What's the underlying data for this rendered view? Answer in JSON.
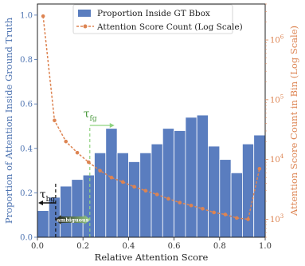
{
  "chart_data": {
    "type": "bar+line",
    "xlabel": "Relative Attention Score",
    "ylabel_left": "Proportion of Attention Inside Ground Truth",
    "ylabel_right": "Attention Score Count in Bin (Log Scale)",
    "x_ticks": [
      "0.0",
      "0.2",
      "0.4",
      "0.6",
      "0.8",
      "1.0"
    ],
    "y_left_ticks": [
      "0.0",
      "0.2",
      "0.4",
      "0.6",
      "0.8",
      "1.0"
    ],
    "y_right_ticks": [
      {
        "value": 1000,
        "base": "10",
        "exp": "3"
      },
      {
        "value": 10000,
        "base": "10",
        "exp": "4"
      },
      {
        "value": 100000,
        "base": "10",
        "exp": "5"
      },
      {
        "value": 1000000,
        "base": "10",
        "exp": "6"
      }
    ],
    "xlim": [
      0,
      1
    ],
    "ylim_left": [
      0,
      1.05
    ],
    "ylim_right_log": [
      500,
      4000000
    ],
    "bins": {
      "x_centers": [
        0.025,
        0.075,
        0.125,
        0.175,
        0.225,
        0.275,
        0.325,
        0.375,
        0.425,
        0.475,
        0.525,
        0.575,
        0.625,
        0.675,
        0.725,
        0.775,
        0.825,
        0.875,
        0.925,
        0.975
      ],
      "width": 0.05
    },
    "series": [
      {
        "name": "Proportion Inside GT Bbox",
        "kind": "bar",
        "axis": "left",
        "color": "#5a7dbf",
        "values": [
          0.12,
          0.18,
          0.23,
          0.26,
          0.28,
          0.38,
          0.49,
          0.38,
          0.34,
          0.38,
          0.42,
          0.49,
          0.48,
          0.54,
          0.55,
          0.41,
          0.35,
          0.29,
          0.42,
          0.46
        ]
      },
      {
        "name": "Attention Score Count (Log Scale)",
        "kind": "line",
        "axis": "right",
        "color": "#dd8452",
        "x": [
          0.025,
          0.075,
          0.125,
          0.175,
          0.225,
          0.275,
          0.325,
          0.375,
          0.425,
          0.475,
          0.525,
          0.575,
          0.625,
          0.675,
          0.725,
          0.775,
          0.825,
          0.875,
          0.925,
          0.975
        ],
        "values": [
          2500000,
          45000,
          20000,
          13000,
          9000,
          6500,
          5000,
          4200,
          3500,
          3000,
          2600,
          2200,
          1900,
          1700,
          1500,
          1300,
          1200,
          1050,
          1000,
          7000
        ]
      }
    ],
    "legend_position": "top-center",
    "annotations": {
      "tau_fg": {
        "base": "τ",
        "sub": "fg",
        "x": 0.23
      },
      "tau_bg": {
        "base": "τ",
        "sub": "bg",
        "x": 0.08
      },
      "ambiguous": "ambiguous"
    },
    "grid": false
  }
}
